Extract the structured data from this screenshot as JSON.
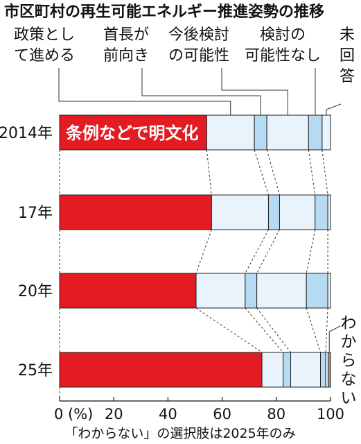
{
  "chart_data": {
    "type": "bar",
    "stacked": true,
    "orientation": "horizontal",
    "title": "市区町村の再生可能エネルギー推進姿勢の推移",
    "note": "「わからない」の選択肢は2025年のみ",
    "categories": [
      "2014年",
      "17年",
      "20年",
      "25年"
    ],
    "xlim": [
      0,
      100
    ],
    "x_ticks": [
      "0 (%)",
      "20",
      "40",
      "60",
      "80",
      "100"
    ],
    "series": [
      {
        "name": "条例などで明文化",
        "color": "#e31b23",
        "values": [
          54.3,
          56.1,
          50.4,
          74.7
        ]
      },
      {
        "name": "政策として進める",
        "color": "#e8f3fb",
        "values": [
          17.6,
          21.0,
          18.1,
          7.8
        ]
      },
      {
        "name": "首長が前向き",
        "color": "#b6daf2",
        "values": [
          4.6,
          4.1,
          4.3,
          2.8
        ]
      },
      {
        "name": "今後検討の可能性",
        "color": "#e8f3fb",
        "values": [
          15.4,
          13.1,
          18.3,
          11.0
        ]
      },
      {
        "name": "検討の可能性なし",
        "color": "#b6daf2",
        "values": [
          5.0,
          4.7,
          7.9,
          1.9
        ]
      },
      {
        "name": "未回答",
        "color": "#e8f3fb",
        "values": [
          3.1,
          1.0,
          1.0,
          0.9
        ]
      },
      {
        "name": "わからない",
        "color": "#9a9a9a",
        "values": [
          0,
          0,
          0,
          0.9
        ]
      }
    ],
    "legend_labels": [
      [
        "政策とし",
        "て進める"
      ],
      [
        "首長が",
        "前向き"
      ],
      [
        "今後検討",
        "の可能性"
      ],
      [
        "検討の",
        "可能性なし"
      ],
      [
        "未",
        "回",
        "答"
      ]
    ],
    "bar_label": "条例などで明文化",
    "side_label": "わからない"
  }
}
